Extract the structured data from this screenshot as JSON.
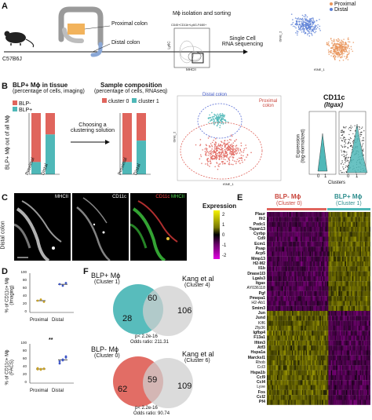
{
  "panelA": {
    "letter": "A",
    "mouse_label": "C57B6J",
    "proximal_colon": "Proximal colon",
    "distal_colon": "Distal colon",
    "step1": "Mϕ isolation and sorting",
    "facs_gate": "CD45+CD11b+Ly6G-F4/80+",
    "facs_ylabel": "Ly6C",
    "facs_xlabel": "MHCII",
    "step2_line1": "Single Cell",
    "step2_line2": "RNA sequencing",
    "tsne_xlabel": "tSNE_1",
    "tsne_ylabel": "tSNE_2",
    "legend": [
      "Proximal",
      "Distal"
    ],
    "colors": {
      "proximal": "#e8955b",
      "distal": "#5b7fd6"
    }
  },
  "panelB": {
    "letter": "B",
    "title1_line1": "BLP+ Mϕ in tissue",
    "title1_line2": "(percentage of cells, imaging)",
    "legend1": [
      "BLP-",
      "BLP+"
    ],
    "ylabel1": "BLP+ Mϕ out of all Mϕ",
    "choose_line1": "Choosing a",
    "choose_line2": "clustering solution",
    "title2_line1": "Sample composition",
    "title2_line2": "(percentage of cells, RNAseq)",
    "legend2": [
      "cluster 0",
      "cluster 1"
    ],
    "bar_cats": [
      "Proximal",
      "Distal"
    ],
    "tsne_distal": "Distal colon",
    "tsne_proximal_line1": "Proximal",
    "tsne_proximal_line2": "colon",
    "tsne_xlabel": "tSNE_1",
    "tsne_ylabel": "tSNE_2",
    "violin_title": "CD11c",
    "violin_subtitle": "(Itgax)",
    "violin_ylabel_line1": "Expression",
    "violin_ylabel_line2": "(log-normalized)",
    "violin_xlabel": "Clusters",
    "violin_cats": [
      "0",
      "1"
    ],
    "colors": {
      "red": "#e0655d",
      "teal": "#4fb8b8"
    }
  },
  "panelC": {
    "letter": "C",
    "side_label": "Distal colon",
    "channels": [
      "MHCII",
      "CD11c",
      "CD11c",
      "MHCII"
    ]
  },
  "panelD": {
    "letter": "D",
    "ylabel_top": "% of CD11c+ Mϕ",
    "ysub_top": "(Imaging)",
    "ylabel_bottom": "% of CD11c+ Mϕ",
    "ysub_bottom": "(FACS)",
    "cats": [
      "Proximal",
      "Distal"
    ],
    "stars": "**",
    "top_yticks": [
      "100",
      "80",
      "60",
      "40",
      "20",
      "0"
    ],
    "bottom_yticks": [
      "100",
      "80",
      "60",
      "40",
      "20",
      "0"
    ]
  },
  "panelE": {
    "letter": "E",
    "legend_title": "Expression",
    "legend_ticks": [
      "2",
      "1",
      "0",
      "-1",
      "-2"
    ],
    "header_left": "BLP- Mϕ",
    "header_left_sub": "(Cluster 0)",
    "header_right": "BLP+ Mϕ",
    "header_right_sub": "(Cluster 1)",
    "genes": [
      {
        "name": "Plaur",
        "bold": true
      },
      {
        "name": "Ifr2",
        "bold": true
      },
      {
        "name": "Pxdc1",
        "bold": true
      },
      {
        "name": "Tspan13",
        "bold": true
      },
      {
        "name": "Cyrbp",
        "bold": true
      },
      {
        "name": "Cd9",
        "bold": true
      },
      {
        "name": "Ecm1",
        "bold": true
      },
      {
        "name": "Psap",
        "bold": true
      },
      {
        "name": "Acp5",
        "bold": true
      },
      {
        "name": "Mmp13",
        "bold": true
      },
      {
        "name": "H2-M2",
        "bold": true
      },
      {
        "name": "Il1b",
        "bold": true
      },
      {
        "name": "Dnase1l3",
        "bold": true
      },
      {
        "name": "Lgals3",
        "bold": true
      },
      {
        "name": "Itgax",
        "bold": true
      },
      {
        "name": "AY036118",
        "bold": false
      },
      {
        "name": "Pgf",
        "bold": true
      },
      {
        "name": "Pmepa1",
        "bold": true
      },
      {
        "name": "H2-Ab1",
        "bold": false
      },
      {
        "name": "Smim3",
        "bold": true
      },
      {
        "name": "Jun",
        "bold": true
      },
      {
        "name": "Jund",
        "bold": true
      },
      {
        "name": "Klf6",
        "bold": false
      },
      {
        "name": "Zfp36",
        "bold": false
      },
      {
        "name": "Igfbp4",
        "bold": true
      },
      {
        "name": "F13a1",
        "bold": true
      },
      {
        "name": "Ifitm3",
        "bold": true
      },
      {
        "name": "Atf3",
        "bold": true
      },
      {
        "name": "Hspa1a",
        "bold": true
      },
      {
        "name": "Marcksl1",
        "bold": true
      },
      {
        "name": "Rhob",
        "bold": false
      },
      {
        "name": "Ccl3",
        "bold": false
      },
      {
        "name": "Hspa1b",
        "bold": true
      },
      {
        "name": "Ccl9",
        "bold": true
      },
      {
        "name": "Ccl4",
        "bold": true
      },
      {
        "name": "Lyve",
        "bold": false
      },
      {
        "name": "Fos",
        "bold": true
      },
      {
        "name": "Ccl2",
        "bold": true
      },
      {
        "name": "Pf4",
        "bold": true
      }
    ],
    "colors": {
      "left_bar": "#e0655d",
      "right_bar": "#4fb8b8"
    }
  },
  "panelF": {
    "letter": "F",
    "venn1_left_title": "BLP+ Mϕ",
    "venn1_left_sub": "(Cluster 1)",
    "venn1_right_title": "Kang et al",
    "venn1_right_sub": "(Cluster 4)",
    "venn1_values": [
      "28",
      "60",
      "106"
    ],
    "venn1_p": "p< 2.2e-16",
    "venn1_odds": "Odds ratio: 211.31",
    "venn2_left_title": "BLP- Mϕ",
    "venn2_left_sub": "(Cluster 0)",
    "venn2_right_title": "Kang et al",
    "venn2_right_sub": "(Cluster 6)",
    "venn2_values": [
      "62",
      "59",
      "109"
    ],
    "venn2_p": "p< 2.2e-16",
    "venn2_odds": "Odds ratio: 90.74",
    "colors": {
      "teal": "#4fb8b8",
      "red": "#e0655d",
      "gray": "#c8c8c8"
    }
  },
  "chart_data": [
    {
      "type": "bar",
      "categories": [
        "Proximal",
        "Distal"
      ],
      "series": [
        {
          "name": "BLP+",
          "values": [
            20,
            65
          ]
        },
        {
          "name": "BLP-",
          "values": [
            80,
            35
          ]
        }
      ],
      "ylim": [
        0,
        100
      ],
      "stacked": true
    },
    {
      "type": "bar",
      "categories": [
        "Proximal",
        "Distal"
      ],
      "series": [
        {
          "name": "cluster 1",
          "values": [
            20,
            55
          ]
        },
        {
          "name": "cluster 0",
          "values": [
            80,
            45
          ]
        }
      ],
      "ylim": [
        0,
        100
      ],
      "stacked": true
    },
    {
      "type": "scatter",
      "categories": [
        "Proximal",
        "Distal"
      ],
      "values": [
        [
          30,
          33,
          27
        ],
        [
          72,
          68,
          75
        ]
      ],
      "ylim": [
        0,
        100
      ]
    },
    {
      "type": "scatter",
      "categories": [
        "Proximal",
        "Distal"
      ],
      "values": [
        [
          35,
          36,
          37,
          38,
          34,
          36
        ],
        [
          50,
          60,
          65,
          55,
          58,
          68
        ]
      ],
      "ylim": [
        0,
        100
      ]
    }
  ]
}
